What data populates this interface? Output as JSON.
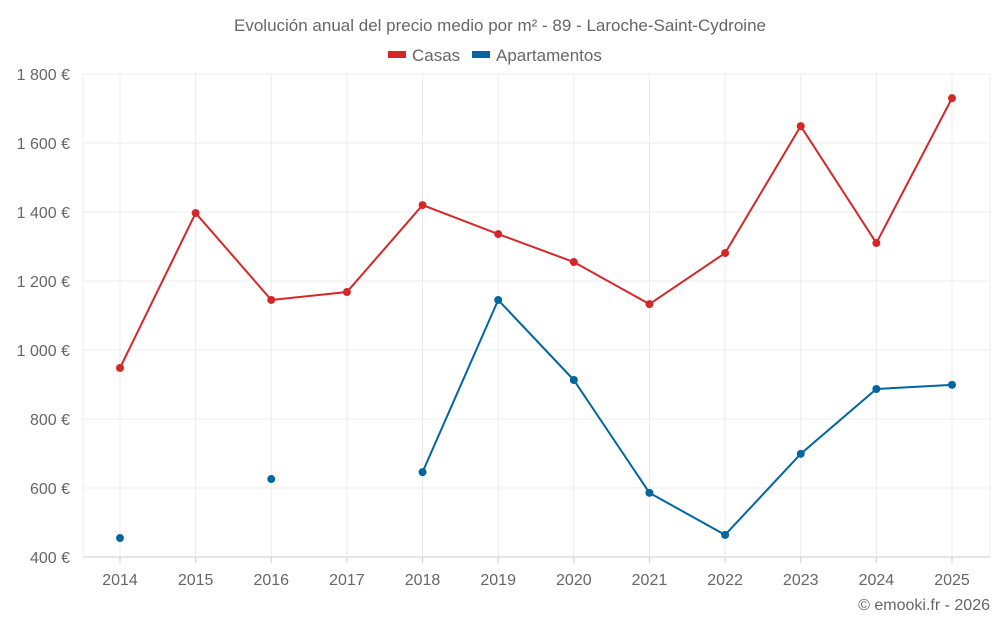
{
  "chart_data": {
    "type": "line",
    "title": "Evolución anual del precio medio por m² - 89 - Laroche-Saint-Cydroine",
    "xlabel": "",
    "ylabel": "",
    "x": [
      2014,
      2015,
      2016,
      2017,
      2018,
      2019,
      2020,
      2021,
      2022,
      2023,
      2024,
      2025
    ],
    "x_tick_labels": [
      "2014",
      "2015",
      "2016",
      "2017",
      "2018",
      "2019",
      "2020",
      "2021",
      "2022",
      "2023",
      "2024",
      "2025"
    ],
    "ylim": [
      400,
      1800
    ],
    "y_ticks": [
      400,
      600,
      800,
      1000,
      1200,
      1400,
      1600,
      1800
    ],
    "y_tick_labels": [
      "400 €",
      "600 €",
      "800 €",
      "1 000 €",
      "1 200 €",
      "1 400 €",
      "1 600 €",
      "1 800 €"
    ],
    "grid": true,
    "legend_position": "top-center",
    "series": [
      {
        "name": "Casas",
        "color": "#d62728",
        "values": [
          948,
          1397,
          1145,
          1168,
          1420,
          1336,
          1255,
          1133,
          1281,
          1649,
          1310,
          1730
        ]
      },
      {
        "name": "Apartamentos",
        "color": "#0066a1",
        "values": [
          455,
          null,
          626,
          null,
          646,
          1145,
          913,
          586,
          464,
          699,
          887,
          899
        ]
      }
    ],
    "credit": "© emooki.fr - 2026"
  }
}
